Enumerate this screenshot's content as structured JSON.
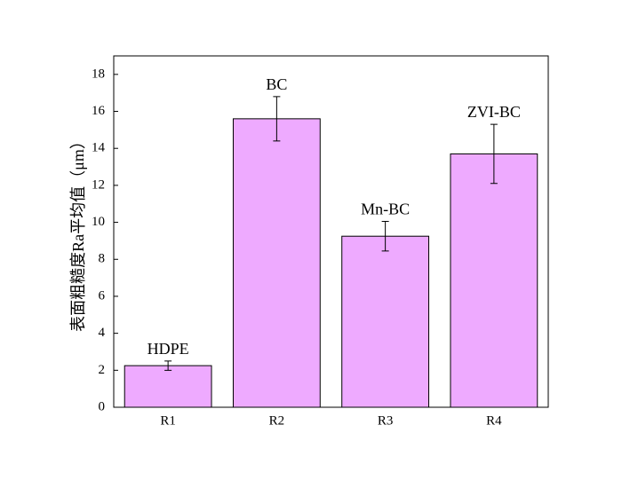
{
  "chart_data": {
    "type": "bar",
    "y_label": "表面粗糙度Ra平均值（μm）",
    "categories": [
      "R1",
      "R2",
      "R3",
      "R4"
    ],
    "values": [
      2.25,
      15.6,
      9.25,
      13.7
    ],
    "errors": [
      0.25,
      1.2,
      0.8,
      1.6
    ],
    "bar_labels": [
      "HDPE",
      "BC",
      "Mn-BC",
      "ZVI-BC"
    ],
    "color": "#eeaaff",
    "ylim": [
      0,
      19
    ],
    "yticks": [
      0,
      2,
      4,
      6,
      8,
      10,
      12,
      14,
      16,
      18
    ],
    "grid": false
  }
}
